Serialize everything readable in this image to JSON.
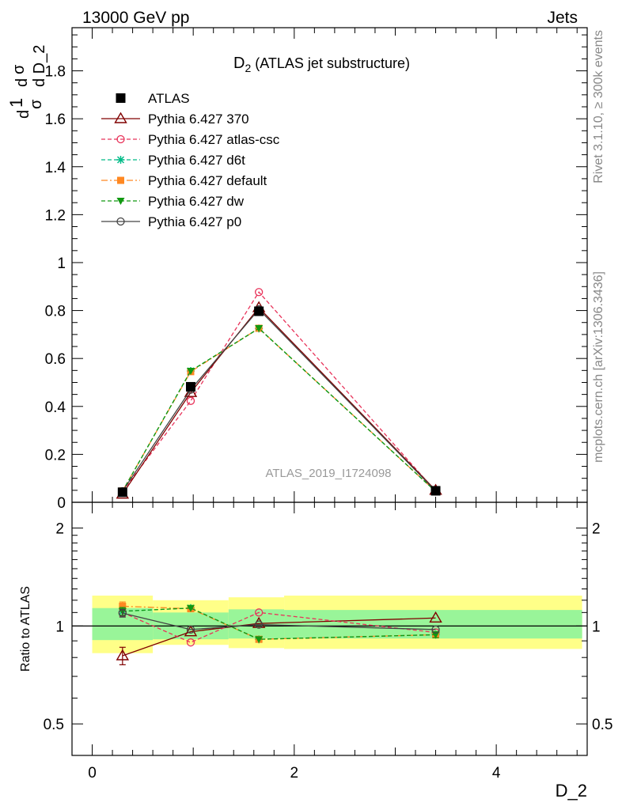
{
  "header": {
    "left": "13000 GeV pp",
    "right": "Jets"
  },
  "side_text": {
    "rivet": "Rivet 3.1.10, ≥ 300k events",
    "mcplots": "mcplots.cern.ch [arXiv:1306.3436]"
  },
  "chart_data": [
    {
      "type": "line",
      "title_main": "D",
      "title_sub": "2",
      "title_rest": " (ATLAS jet substructure)",
      "ylabel": "1/σ dσ/d D_2",
      "xlim": [
        -0.2,
        4.9
      ],
      "ylim": [
        0,
        1.98
      ],
      "yticks": [
        "0",
        "0.2",
        "0.4",
        "0.6",
        "0.8",
        "1",
        "1.2",
        "1.4",
        "1.6",
        "1.8"
      ],
      "x": [
        0.3,
        0.975,
        1.65,
        3.4
      ],
      "annotation": "ATLAS_2019_I1724098",
      "series": [
        {
          "name": "ATLAS",
          "values": [
            0.042,
            0.482,
            0.797,
            0.048
          ],
          "color": "#000000",
          "style": "square-filled"
        },
        {
          "name": "Pythia 6.427 370",
          "values": [
            0.034,
            0.458,
            0.812,
            0.05
          ],
          "color": "#800000",
          "style": "triangle-open-solid"
        },
        {
          "name": "Pythia 6.427 atlas-csc",
          "values": [
            0.046,
            0.423,
            0.877,
            0.046
          ],
          "color": "#e8335a",
          "style": "circle-open-dashed"
        },
        {
          "name": "Pythia 6.427 d6t",
          "values": [
            0.046,
            0.548,
            0.725,
            0.045
          ],
          "color": "#00bb88",
          "style": "star-dashed"
        },
        {
          "name": "Pythia 6.427 default",
          "values": [
            0.047,
            0.545,
            0.726,
            0.045
          ],
          "color": "#ff8822",
          "style": "square-filled-dashdot"
        },
        {
          "name": "Pythia 6.427 dw",
          "values": [
            0.046,
            0.548,
            0.726,
            0.045
          ],
          "color": "#119911",
          "style": "triangle-down-filled-dashed"
        },
        {
          "name": "Pythia 6.427 p0",
          "values": [
            0.046,
            0.47,
            0.805,
            0.047
          ],
          "color": "#444444",
          "style": "circle-open-solid"
        }
      ]
    },
    {
      "type": "line",
      "ylabel": "Ratio to ATLAS",
      "xlabel": "D_2",
      "xlim": [
        -0.2,
        4.9
      ],
      "ylim": [
        0.4,
        2.4
      ],
      "log_y": true,
      "xticks": [
        "0",
        "2",
        "4"
      ],
      "yticks": [
        "0.5",
        "1",
        "2"
      ],
      "x": [
        0.3,
        0.975,
        1.65,
        3.4
      ],
      "bands": [
        {
          "x0": 0.0,
          "x1": 0.6,
          "outer": [
            0.825,
            1.24
          ],
          "inner": [
            0.905,
            1.135
          ]
        },
        {
          "x0": 0.6,
          "x1": 1.35,
          "outer": [
            0.875,
            1.2
          ],
          "inner": [
            0.91,
            1.1
          ]
        },
        {
          "x0": 1.35,
          "x1": 1.9,
          "outer": [
            0.855,
            1.225
          ],
          "inner": [
            0.915,
            1.125
          ]
        },
        {
          "x0": 1.9,
          "x1": 4.85,
          "outer": [
            0.85,
            1.24
          ],
          "inner": [
            0.915,
            1.12
          ]
        }
      ],
      "series": [
        {
          "name": "Pythia 6.427 370",
          "values": [
            0.81,
            0.96,
            1.018,
            1.058
          ],
          "err": [
            0.05,
            0,
            0,
            0
          ]
        },
        {
          "name": "Pythia 6.427 atlas-csc",
          "values": [
            1.1,
            0.89,
            1.1,
            0.955
          ],
          "err": [
            0.03,
            0,
            0,
            0
          ]
        },
        {
          "name": "Pythia 6.427 d6t",
          "values": [
            1.11,
            1.135,
            0.91,
            0.94
          ],
          "err": [
            0.03,
            0,
            0,
            0.02
          ]
        },
        {
          "name": "Pythia 6.427 default",
          "values": [
            1.15,
            1.13,
            0.91,
            0.94
          ],
          "err": [
            0.035,
            0,
            0,
            0.02
          ]
        },
        {
          "name": "Pythia 6.427 dw",
          "values": [
            1.11,
            1.135,
            0.91,
            0.94
          ],
          "err": [
            0.03,
            0,
            0,
            0.02
          ]
        },
        {
          "name": "Pythia 6.427 p0",
          "values": [
            1.095,
            0.975,
            1.01,
            0.975
          ],
          "err": [
            0.03,
            0,
            0,
            0
          ]
        }
      ]
    }
  ]
}
